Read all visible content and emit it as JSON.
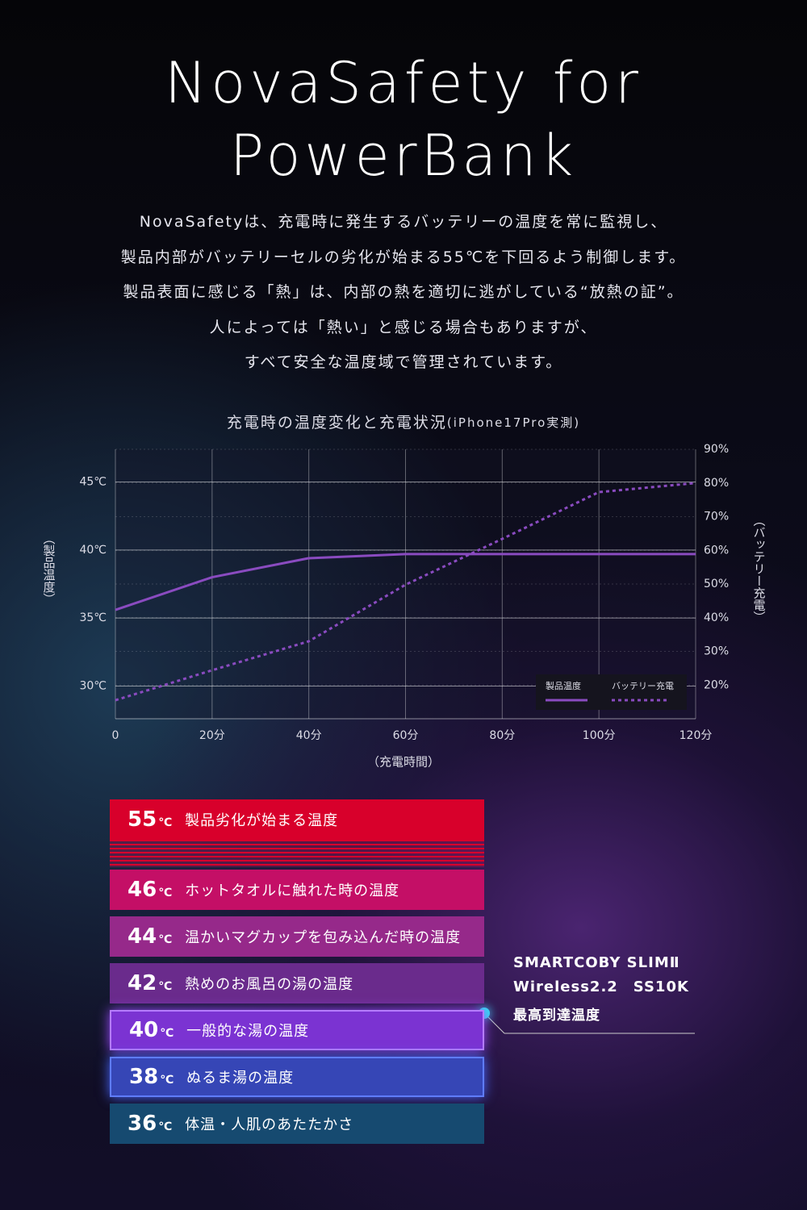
{
  "header": {
    "title_lines": [
      "NovaSafety for",
      "PowerBank"
    ],
    "lead_lines": [
      "NovaSafetyは、充電時に発生するバッテリーの温度を常に監視し、",
      "製品内部がバッテリーセルの劣化が始まる55℃を下回るよう制御します。",
      "製品表面に感じる「熱」は、内部の熱を適切に逃がしている“放熱の証”。",
      "人によっては「熱い」と感じる場合もありますが、",
      "すべて安全な温度域で管理されています。"
    ]
  },
  "chart_data": {
    "type": "line",
    "title": "充電時の温度変化と充電状況",
    "subtitle": "(iPhone17Pro実測)",
    "x_label": "（充電時間）",
    "y_label": "（製品温度）",
    "y2_label": "（バッテリー充電）",
    "x": [
      0,
      20,
      40,
      60,
      80,
      100,
      120
    ],
    "xlim": [
      0,
      120
    ],
    "xticks": [
      0,
      {
        "value": 20,
        "label": "20分"
      },
      {
        "value": 40,
        "label": "40分"
      },
      {
        "value": 60,
        "label": "60分"
      },
      {
        "value": 80,
        "label": "80分"
      },
      {
        "value": 100,
        "label": "100分"
      },
      {
        "value": 120,
        "label": "120分"
      }
    ],
    "ylim": [
      27.6,
      47.4
    ],
    "yticks": [
      {
        "value": 30,
        "label": "30℃"
      },
      {
        "value": 35,
        "label": "35℃"
      },
      {
        "value": 40,
        "label": "40℃"
      },
      {
        "value": 45,
        "label": "45℃"
      }
    ],
    "y2lim": [
      10,
      90
    ],
    "y2ticks": [
      {
        "value": 20,
        "label": "20%"
      },
      {
        "value": 30,
        "label": "30%"
      },
      {
        "value": 40,
        "label": "40%"
      },
      {
        "value": 50,
        "label": "50%"
      },
      {
        "value": 60,
        "label": "60%"
      },
      {
        "value": 70,
        "label": "70%"
      },
      {
        "value": 80,
        "label": "80%"
      },
      {
        "value": 90,
        "label": "90%"
      }
    ],
    "grid": true,
    "legend": "lower right",
    "series": [
      {
        "name": "製品温度",
        "color": "#8a4bc0",
        "dash": false,
        "values": [
          35.6,
          38.0,
          39.4,
          39.7,
          39.7,
          39.7,
          39.7
        ]
      },
      {
        "name": "バッテリー充電",
        "color": "#8a4bc0",
        "dash": true,
        "axis": "y2",
        "values": [
          15.5,
          24.4,
          33,
          49.8,
          63.4,
          77.3,
          80
        ]
      }
    ]
  },
  "scale": {
    "items": [
      {
        "temp": "55",
        "unit": "℃",
        "text": "製品劣化が始まる温度",
        "color": "#d8002b"
      },
      {
        "temp": "46",
        "unit": "℃",
        "text": "ホットタオルに触れた時の温度",
        "color": "#c40f66"
      },
      {
        "temp": "44",
        "unit": "℃",
        "text": "温かいマグカップを包み込んだ時の温度",
        "color": "#96298a"
      },
      {
        "temp": "42",
        "unit": "℃",
        "text": "熱めのお風呂の湯の温度",
        "color": "#6a2b8c"
      },
      {
        "temp": "40",
        "unit": "℃",
        "text": "一般的な湯の温度",
        "color": "#7b33d2"
      },
      {
        "temp": "38",
        "unit": "℃",
        "text": "ぬるま湯の温度",
        "color": "#3646b6"
      },
      {
        "temp": "36",
        "unit": "℃",
        "text": "体温・人肌のあたたかさ",
        "color": "#164a70"
      }
    ]
  },
  "callout": {
    "lines": [
      "SMARTCOBY SLIMⅡ",
      "Wireless2.2　SS10K"
    ],
    "label": "最高到達温度"
  }
}
